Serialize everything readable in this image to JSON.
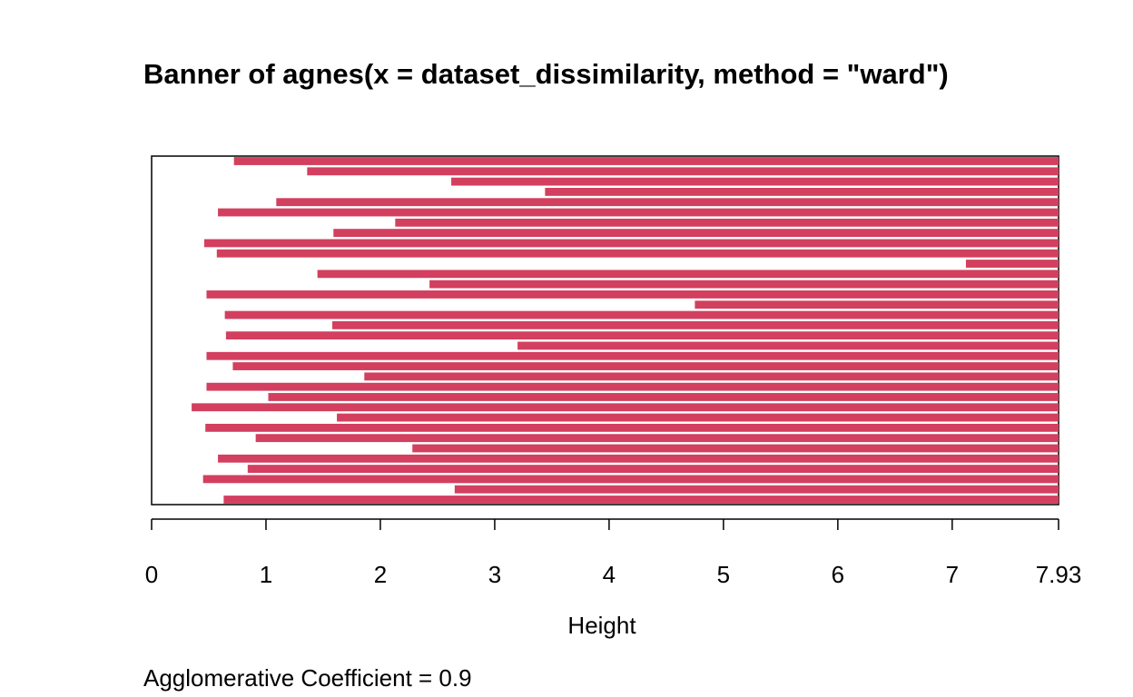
{
  "chart_data": {
    "type": "bar",
    "title": "Banner of  agnes(x = dataset_dissimilarity, method = \"ward\")",
    "xlabel": "Height",
    "ylabel": "",
    "xlim": [
      0,
      7.93
    ],
    "x_ticks": [
      "0",
      "1",
      "2",
      "3",
      "4",
      "5",
      "6",
      "7",
      "7.93"
    ],
    "x_tick_values": [
      0,
      1,
      2,
      3,
      4,
      5,
      6,
      7,
      7.93
    ],
    "orientation": "horizontal",
    "bar_color": "#D33F5F",
    "values": [
      0.72,
      1.36,
      2.62,
      3.44,
      1.09,
      0.58,
      2.13,
      1.59,
      0.46,
      0.57,
      7.12,
      1.45,
      2.43,
      0.48,
      4.75,
      0.64,
      1.58,
      0.65,
      3.2,
      0.48,
      0.71,
      1.86,
      0.48,
      1.02,
      0.35,
      1.62,
      0.47,
      0.91,
      2.28,
      0.58,
      0.84,
      0.45,
      2.65,
      0.63
    ],
    "grid": false,
    "legend": "none",
    "coefficient_text": "Agglomerative Coefficient =  0.9"
  }
}
